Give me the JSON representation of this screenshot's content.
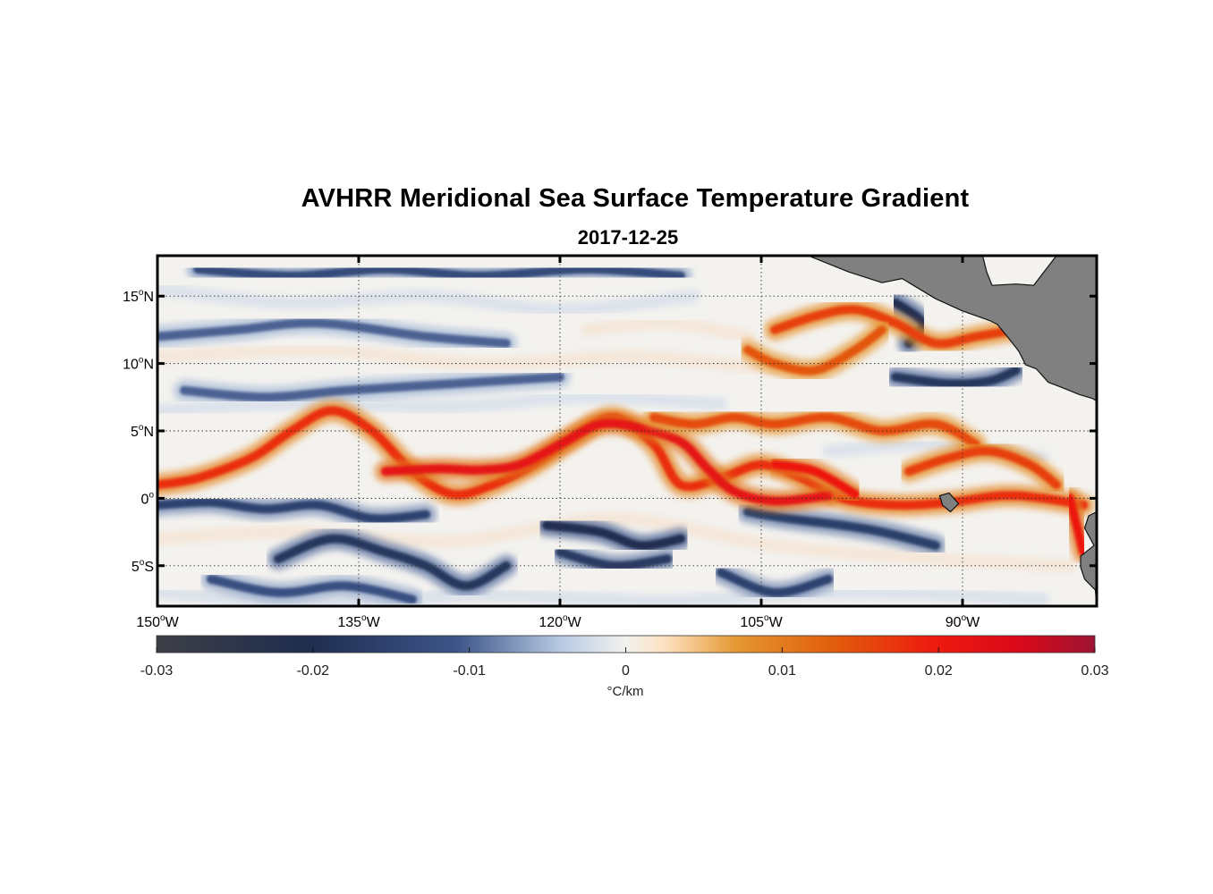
{
  "figure": {
    "title": "AVHRR Meridional Sea Surface Temperature Gradient",
    "date": "2017-12-25"
  },
  "chart_data": {
    "type": "heatmap",
    "title": "AVHRR Meridional Sea Surface Temperature Gradient",
    "subtitle": "2017-12-25",
    "variable": "Meridional SST gradient",
    "units": "°C/km",
    "xlim": [
      -150,
      -80
    ],
    "ylim": [
      -8,
      18
    ],
    "x_ticks": [
      {
        "value": -150,
        "num": "150",
        "hemi": "W"
      },
      {
        "value": -135,
        "num": "135",
        "hemi": "W"
      },
      {
        "value": -120,
        "num": "120",
        "hemi": "W"
      },
      {
        "value": -105,
        "num": "105",
        "hemi": "W"
      },
      {
        "value": -90,
        "num": "90",
        "hemi": "W"
      }
    ],
    "y_ticks": [
      {
        "value": 15,
        "num": "15",
        "hemi": "N"
      },
      {
        "value": 10,
        "num": "10",
        "hemi": "N"
      },
      {
        "value": 5,
        "num": "5",
        "hemi": "N"
      },
      {
        "value": 0,
        "num": "0",
        "hemi": ""
      },
      {
        "value": -5,
        "num": "5",
        "hemi": "S"
      }
    ],
    "grid": true,
    "colorbar": {
      "orientation": "horizontal",
      "placement": "bottom",
      "range": [
        -0.03,
        0.03
      ],
      "tick_values": [
        -0.03,
        -0.02,
        -0.01,
        0,
        0.01,
        0.02,
        0.03
      ],
      "tick_labels": [
        "-0.03",
        "-0.02",
        "-0.01",
        "0",
        "0.01",
        "0.02",
        "0.03"
      ],
      "label": "°C/km",
      "stops": [
        {
          "v": 0.0,
          "c": "#3d3f46"
        },
        {
          "v": 0.16,
          "c": "#1f2d4f"
        },
        {
          "v": 0.32,
          "c": "#3c5488"
        },
        {
          "v": 0.43,
          "c": "#b7c9e2"
        },
        {
          "v": 0.5,
          "c": "#f2f2ef"
        },
        {
          "v": 0.54,
          "c": "#fde3c3"
        },
        {
          "v": 0.62,
          "c": "#e5962f"
        },
        {
          "v": 0.72,
          "c": "#e15e0c"
        },
        {
          "v": 0.83,
          "c": "#ee1a0f"
        },
        {
          "v": 0.92,
          "c": "#d9091a"
        },
        {
          "v": 1.0,
          "c": "#9d1432"
        }
      ]
    },
    "features": {
      "positive_fronts": [
        {
          "strength": 0.018,
          "points": [
            [
              -150,
              1
            ],
            [
              -147,
              1.5
            ],
            [
              -143,
              3
            ],
            [
              -140,
              5
            ],
            [
              -137,
              6.5
            ],
            [
              -134,
              5
            ],
            [
              -131,
              2
            ],
            [
              -128,
              0.3
            ],
            [
              -125,
              1
            ],
            [
              -122,
              2.5
            ],
            [
              -119,
              4.5
            ],
            [
              -116,
              6
            ],
            [
              -113,
              4
            ],
            [
              -111,
              1
            ],
            [
              -108,
              1.5
            ],
            [
              -105,
              2.5
            ],
            [
              -102,
              1.5
            ],
            [
              -99,
              0
            ],
            [
              -95,
              -0.5
            ],
            [
              -91,
              -0.3
            ],
            [
              -87,
              0.2
            ],
            [
              -84,
              0
            ],
            [
              -81,
              -0.5
            ]
          ]
        },
        {
          "strength": 0.022,
          "points": [
            [
              -133,
              2
            ],
            [
              -129,
              2.2
            ],
            [
              -126,
              2.1
            ],
            [
              -123,
              2.5
            ],
            [
              -120,
              4
            ],
            [
              -117,
              5.5
            ],
            [
              -114,
              5.2
            ],
            [
              -111,
              4.2
            ],
            [
              -109,
              2.2
            ],
            [
              -107,
              0.5
            ],
            [
              -104,
              -0.2
            ],
            [
              -100,
              0.2
            ]
          ]
        },
        {
          "strength": 0.02,
          "points": [
            [
              -104,
              2.5
            ],
            [
              -101,
              2
            ],
            [
              -98,
              0.3
            ]
          ]
        },
        {
          "strength": 0.016,
          "points": [
            [
              -104,
              12.5
            ],
            [
              -101,
              13.5
            ],
            [
              -98,
              14
            ],
            [
              -95,
              13
            ],
            [
              -92,
              11.5
            ],
            [
              -89,
              12
            ],
            [
              -86,
              12.5
            ]
          ]
        },
        {
          "strength": 0.014,
          "points": [
            [
              -106,
              11
            ],
            [
              -104,
              10
            ],
            [
              -101,
              9.5
            ],
            [
              -98,
              11
            ],
            [
              -96,
              12.5
            ]
          ]
        },
        {
          "strength": 0.015,
          "points": [
            [
              -113,
              6
            ],
            [
              -110,
              5.5
            ],
            [
              -107,
              6
            ],
            [
              -104,
              5.5
            ],
            [
              -100,
              6
            ],
            [
              -96,
              5
            ],
            [
              -92,
              5.5
            ],
            [
              -89,
              4
            ]
          ]
        },
        {
          "strength": 0.016,
          "points": [
            [
              -94,
              2
            ],
            [
              -91,
              3
            ],
            [
              -88,
              3.5
            ],
            [
              -85,
              2.5
            ],
            [
              -83,
              1
            ]
          ]
        },
        {
          "strength": 0.02,
          "points": [
            [
              -82,
              0
            ],
            [
              -81.5,
              -2
            ],
            [
              -81,
              -4
            ]
          ]
        }
      ],
      "negative_fronts": [
        {
          "strength": -0.015,
          "points": [
            [
              -150,
              -0.5
            ],
            [
              -146,
              -0.3
            ],
            [
              -142,
              -0.8
            ],
            [
              -138,
              -0.5
            ],
            [
              -134,
              -1.5
            ],
            [
              -130,
              -1.2
            ]
          ]
        },
        {
          "strength": -0.018,
          "points": [
            [
              -141,
              -4.5
            ],
            [
              -137,
              -3
            ],
            [
              -133,
              -4
            ],
            [
              -130,
              -5
            ],
            [
              -127,
              -6.5
            ],
            [
              -124,
              -5
            ]
          ]
        },
        {
          "strength": -0.02,
          "points": [
            [
              -121,
              -2
            ],
            [
              -117,
              -2.5
            ],
            [
              -114,
              -3.5
            ],
            [
              -111,
              -3
            ]
          ]
        },
        {
          "strength": -0.017,
          "points": [
            [
              -120,
              -4
            ],
            [
              -116,
              -5
            ],
            [
              -112,
              -4.5
            ]
          ]
        },
        {
          "strength": -0.016,
          "points": [
            [
              -106,
              -1
            ],
            [
              -103,
              -1.5
            ],
            [
              -99,
              -2
            ],
            [
              -96,
              -2.5
            ],
            [
              -92,
              -3.5
            ]
          ]
        },
        {
          "strength": -0.012,
          "points": [
            [
              -146,
              -6
            ],
            [
              -141,
              -7
            ],
            [
              -136,
              -6.5
            ],
            [
              -131,
              -7.5
            ]
          ]
        },
        {
          "strength": -0.015,
          "points": [
            [
              -108,
              -5.5
            ],
            [
              -104,
              -7
            ],
            [
              -100,
              -6
            ]
          ]
        },
        {
          "strength": -0.02,
          "points": [
            [
              -95,
              14.5
            ],
            [
              -93,
              13
            ],
            [
              -94,
              11.5
            ]
          ]
        },
        {
          "strength": -0.018,
          "points": [
            [
              -95,
              9
            ],
            [
              -91,
              8.5
            ],
            [
              -88,
              8.7
            ],
            [
              -86,
              9.5
            ]
          ]
        },
        {
          "strength": -0.013,
          "points": [
            [
              -147,
              17
            ],
            [
              -140,
              16.5
            ],
            [
              -133,
              17
            ],
            [
              -126,
              16.5
            ],
            [
              -118,
              17
            ],
            [
              -111,
              16.5
            ]
          ]
        },
        {
          "strength": -0.01,
          "points": [
            [
              -150,
              12
            ],
            [
              -144,
              12.5
            ],
            [
              -138,
              13
            ],
            [
              -130,
              12
            ],
            [
              -124,
              11.5
            ]
          ]
        },
        {
          "strength": -0.01,
          "points": [
            [
              -148,
              8
            ],
            [
              -142,
              7.5
            ],
            [
              -136,
              8
            ],
            [
              -128,
              8.5
            ],
            [
              -120,
              9
            ]
          ]
        }
      ],
      "land": [
        {
          "name": "Central America",
          "points": [
            [
              -101.5,
              18
            ],
            [
              -98.5,
              16.8
            ],
            [
              -96,
              16
            ],
            [
              -94.5,
              16.3
            ],
            [
              -92,
              14.8
            ],
            [
              -90,
              13.9
            ],
            [
              -88,
              13.2
            ],
            [
              -87.4,
              12.9
            ],
            [
              -86.5,
              11.8
            ],
            [
              -85.8,
              10.9
            ],
            [
              -85.3,
              9.9
            ],
            [
              -84.5,
              9.6
            ],
            [
              -83.6,
              8.6
            ],
            [
              -82.8,
              8.3
            ],
            [
              -81.3,
              7.7
            ],
            [
              -80.3,
              7.4
            ],
            [
              -80,
              7.2
            ],
            [
              -80,
              18
            ],
            [
              -83,
              18
            ],
            [
              -84.7,
              15.8
            ],
            [
              -86,
              15.9
            ],
            [
              -87.8,
              15.8
            ],
            [
              -88.2,
              16.8
            ],
            [
              -88.5,
              18
            ]
          ]
        },
        {
          "name": "South America",
          "points": [
            [
              -80,
              -1
            ],
            [
              -80.6,
              -1.3
            ],
            [
              -80.9,
              -2.2
            ],
            [
              -80.2,
              -3.5
            ],
            [
              -81.2,
              -4.3
            ],
            [
              -81.2,
              -5.1
            ],
            [
              -80.9,
              -6
            ],
            [
              -80.1,
              -6.8
            ],
            [
              -80,
              -8
            ]
          ]
        },
        {
          "name": "Galapagos",
          "points": [
            [
              -91.7,
              0.2
            ],
            [
              -91,
              0.4
            ],
            [
              -90.3,
              -0.4
            ],
            [
              -90.9,
              -1
            ],
            [
              -91.5,
              -0.5
            ]
          ]
        }
      ]
    }
  }
}
